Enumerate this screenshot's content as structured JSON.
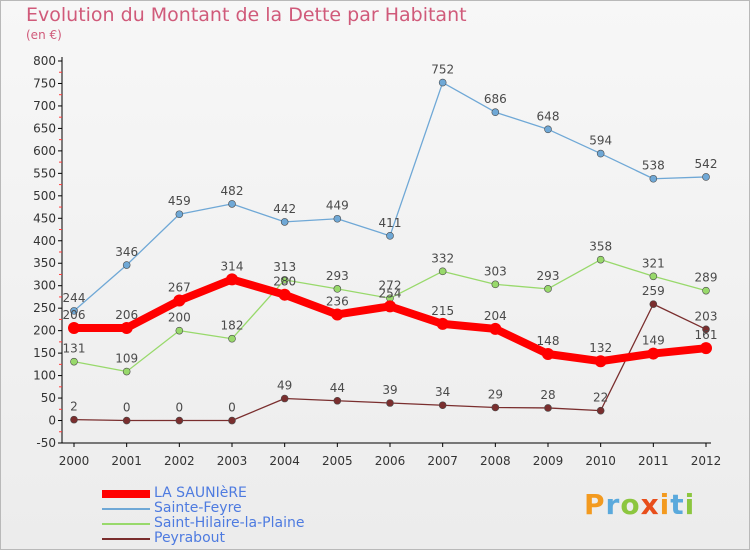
{
  "title": "Evolution du Montant de la Dette par Habitant",
  "subtitle": "(en €)",
  "logo": {
    "text": "Proxiti",
    "colors": [
      "#f39a1f",
      "#5aa9dc",
      "#8cc63f",
      "#e84e1b",
      "#f39a1f",
      "#5aa9dc",
      "#8cc63f"
    ]
  },
  "chart_data": {
    "type": "line",
    "x": [
      "2000",
      "2001",
      "2002",
      "2003",
      "2004",
      "2005",
      "2006",
      "2007",
      "2008",
      "2009",
      "2010",
      "2011",
      "2012"
    ],
    "ylim": [
      -50,
      800
    ],
    "yticks": [
      -50,
      0,
      50,
      100,
      150,
      200,
      250,
      300,
      350,
      400,
      450,
      500,
      550,
      600,
      650,
      700,
      750,
      800
    ],
    "grid": false,
    "legend": "bottom-left",
    "series": [
      {
        "name": "LA SAUNIèRE",
        "color": "#ff0000",
        "values": [
          206,
          206,
          267,
          314,
          280,
          236,
          254,
          215,
          204,
          148,
          132,
          149,
          161
        ]
      },
      {
        "name": "Sainte-Feyre",
        "color": "#6fa8d6",
        "values": [
          244,
          346,
          459,
          482,
          442,
          449,
          411,
          752,
          686,
          648,
          594,
          538,
          542
        ]
      },
      {
        "name": "Saint-Hilaire-la-Plaine",
        "color": "#98d96b",
        "values": [
          131,
          109,
          200,
          182,
          313,
          293,
          272,
          332,
          303,
          293,
          358,
          321,
          289
        ]
      },
      {
        "name": "Peyrabout",
        "color": "#7a2e2e",
        "values": [
          2,
          0,
          0,
          0,
          49,
          44,
          39,
          34,
          29,
          28,
          22,
          259,
          203
        ]
      }
    ]
  }
}
